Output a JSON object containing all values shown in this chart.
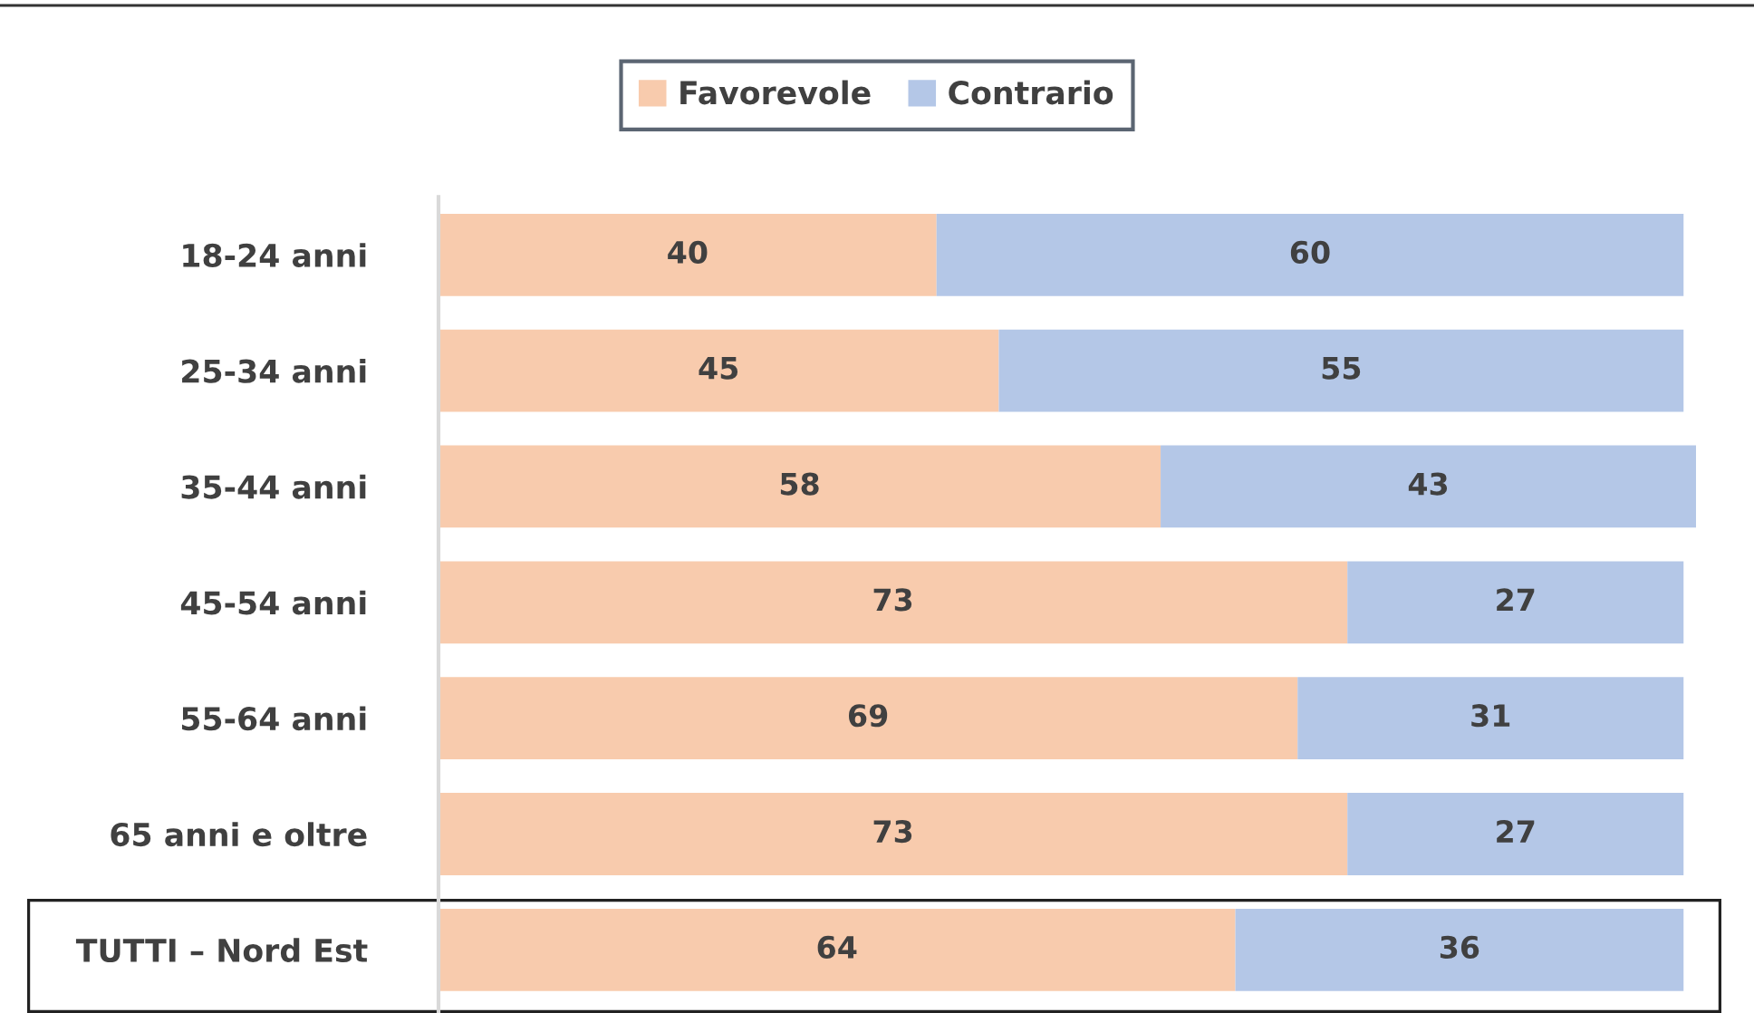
{
  "chart_data": {
    "type": "bar",
    "orientation": "horizontal",
    "stacked": true,
    "data_labels": true,
    "legend": "top",
    "grid": false,
    "tick_labels": "y",
    "categories": [
      "18-24 anni",
      "25-34 anni",
      "35-44 anni",
      "45-54 anni",
      "55-64 anni",
      "65 anni e oltre",
      "TUTTI – Nord Est"
    ],
    "series": [
      {
        "name": "Favorevole",
        "color": "#f8cbad",
        "values": [
          40,
          45,
          58,
          73,
          69,
          73,
          64
        ]
      },
      {
        "name": "Contrario",
        "color": "#b4c7e7",
        "values": [
          60,
          55,
          43,
          27,
          31,
          27,
          36
        ]
      }
    ]
  }
}
